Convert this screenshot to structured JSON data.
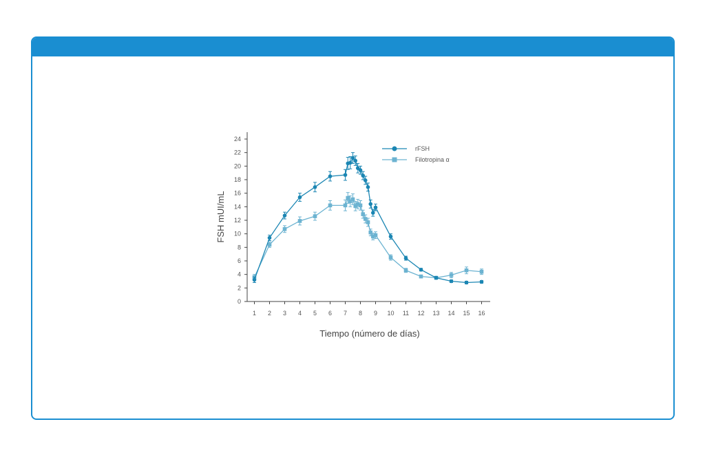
{
  "chart_data": {
    "type": "line",
    "title": "",
    "xlabel": "Tiempo (número de días)",
    "ylabel": "FSH mUI/mL",
    "xlim": [
      0.6,
      16.6
    ],
    "ylim": [
      0,
      25
    ],
    "x_ticks": [
      "1",
      "2",
      "3",
      "4",
      "5",
      "6",
      "7",
      "8",
      "9",
      "10",
      "11",
      "12",
      "13",
      "14",
      "15",
      "16"
    ],
    "y_ticks": [
      "0",
      "2",
      "4",
      "6",
      "8",
      "10",
      "12",
      "14",
      "16",
      "18",
      "20",
      "22",
      "24"
    ],
    "grid": false,
    "legend_position": "top-right",
    "series": [
      {
        "name": "rFSH",
        "color": "#1b86b3",
        "marker": "circle",
        "points": [
          {
            "x": 1,
            "y": 3.2,
            "err": 0.4
          },
          {
            "x": 2,
            "y": 9.4,
            "err": 0.4
          },
          {
            "x": 3,
            "y": 12.7,
            "err": 0.5
          },
          {
            "x": 4,
            "y": 15.4,
            "err": 0.6
          },
          {
            "x": 5,
            "y": 16.9,
            "err": 0.7
          },
          {
            "x": 6,
            "y": 18.5,
            "err": 0.7
          },
          {
            "x": 7,
            "y": 18.7,
            "err": 0.8
          },
          {
            "x": 7.17,
            "y": 20.4,
            "err": 0.9
          },
          {
            "x": 7.33,
            "y": 20.5,
            "err": 0.9
          },
          {
            "x": 7.5,
            "y": 21.2,
            "err": 0.8
          },
          {
            "x": 7.67,
            "y": 20.8,
            "err": 0.7
          },
          {
            "x": 7.83,
            "y": 19.7,
            "err": 0.7
          },
          {
            "x": 8,
            "y": 19.4,
            "err": 0.6
          },
          {
            "x": 8.17,
            "y": 18.6,
            "err": 0.6
          },
          {
            "x": 8.33,
            "y": 17.9,
            "err": 0.6
          },
          {
            "x": 8.5,
            "y": 16.9,
            "err": 0.6
          },
          {
            "x": 8.67,
            "y": 14.4,
            "err": 0.6
          },
          {
            "x": 8.83,
            "y": 13.1,
            "err": 0.5
          },
          {
            "x": 9,
            "y": 13.9,
            "err": 0.5
          },
          {
            "x": 10,
            "y": 9.6,
            "err": 0.4
          },
          {
            "x": 11,
            "y": 6.4,
            "err": 0.3
          },
          {
            "x": 12,
            "y": 4.7,
            "err": 0.2
          },
          {
            "x": 13,
            "y": 3.5,
            "err": 0.2
          },
          {
            "x": 14,
            "y": 3.0,
            "err": 0.2
          },
          {
            "x": 15,
            "y": 2.8,
            "err": 0.2
          },
          {
            "x": 16,
            "y": 2.9,
            "err": 0.2
          }
        ]
      },
      {
        "name": "Filotropina α",
        "color": "#6cb3d1",
        "marker": "square",
        "points": [
          {
            "x": 1,
            "y": 3.6,
            "err": 0.4
          },
          {
            "x": 2,
            "y": 8.4,
            "err": 0.4
          },
          {
            "x": 3,
            "y": 10.7,
            "err": 0.5
          },
          {
            "x": 4,
            "y": 11.9,
            "err": 0.6
          },
          {
            "x": 5,
            "y": 12.6,
            "err": 0.6
          },
          {
            "x": 6,
            "y": 14.2,
            "err": 0.7
          },
          {
            "x": 7,
            "y": 14.2,
            "err": 0.8
          },
          {
            "x": 7.17,
            "y": 15.3,
            "err": 0.8
          },
          {
            "x": 7.33,
            "y": 14.8,
            "err": 0.8
          },
          {
            "x": 7.5,
            "y": 15.1,
            "err": 0.8
          },
          {
            "x": 7.67,
            "y": 14.1,
            "err": 0.7
          },
          {
            "x": 7.83,
            "y": 14.4,
            "err": 0.7
          },
          {
            "x": 8,
            "y": 14.2,
            "err": 0.7
          },
          {
            "x": 8.17,
            "y": 12.9,
            "err": 0.6
          },
          {
            "x": 8.33,
            "y": 12.2,
            "err": 0.6
          },
          {
            "x": 8.5,
            "y": 11.7,
            "err": 0.6
          },
          {
            "x": 8.67,
            "y": 10.2,
            "err": 0.5
          },
          {
            "x": 8.83,
            "y": 9.6,
            "err": 0.5
          },
          {
            "x": 9,
            "y": 9.8,
            "err": 0.5
          },
          {
            "x": 10,
            "y": 6.5,
            "err": 0.4
          },
          {
            "x": 11,
            "y": 4.6,
            "err": 0.3
          },
          {
            "x": 12,
            "y": 3.7,
            "err": 0.2
          },
          {
            "x": 13,
            "y": 3.5,
            "err": 0.2
          },
          {
            "x": 14,
            "y": 3.9,
            "err": 0.4
          },
          {
            "x": 15,
            "y": 4.6,
            "err": 0.5
          },
          {
            "x": 16,
            "y": 4.4,
            "err": 0.4
          }
        ]
      }
    ]
  }
}
